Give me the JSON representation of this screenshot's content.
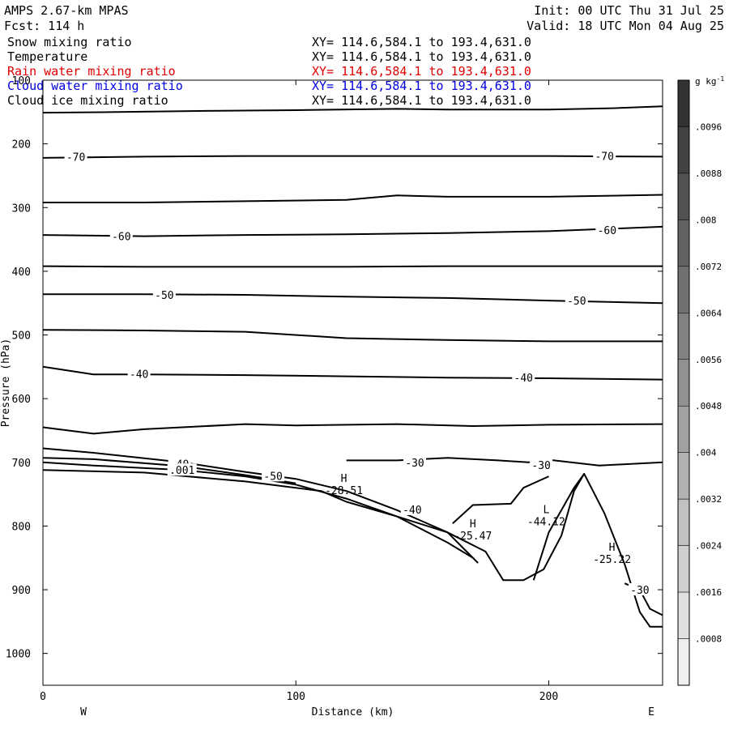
{
  "header": {
    "model": "AMPS 2.67-km MPAS",
    "forecast": "Fcst: 114 h",
    "init": "Init: 00 UTC Thu 31 Jul 25",
    "valid": "Valid: 18 UTC Mon 04 Aug 25"
  },
  "fields": [
    {
      "name": "Snow mixing ratio",
      "xy": "XY= 114.6,584.1 to 193.4,631.0",
      "color": "#000000"
    },
    {
      "name": "Temperature",
      "xy": "XY= 114.6,584.1 to 193.4,631.0",
      "color": "#000000"
    },
    {
      "name": "Rain water mixing ratio",
      "xy": "XY= 114.6,584.1 to 193.4,631.0",
      "color": "#e00000"
    },
    {
      "name": "Cloud water mixing ratio",
      "xy": "XY= 114.6,584.1 to 193.4,631.0",
      "color": "#0000e0"
    },
    {
      "name": "Cloud ice mixing ratio",
      "xy": "XY= 114.6,584.1 to 193.4,631.0",
      "color": "#000000"
    }
  ],
  "chart_data": {
    "type": "line",
    "xlabel": "Distance (km)",
    "ylabel": "Pressure (hPa)",
    "xlim": [
      0,
      245
    ],
    "ylim": [
      100,
      1050
    ],
    "x_ticks": [
      0,
      100,
      200
    ],
    "y_ticks": [
      100,
      200,
      300,
      400,
      500,
      600,
      700,
      800,
      900,
      1000
    ],
    "x_end_labels": {
      "left": "W",
      "right": "E"
    },
    "contour_labels": [
      {
        "text": "-70",
        "x": 13,
        "p": 220
      },
      {
        "text": "-70",
        "x": 222,
        "p": 219
      },
      {
        "text": "-60",
        "x": 31,
        "p": 345
      },
      {
        "text": "-60",
        "x": 223,
        "p": 335
      },
      {
        "text": "-50",
        "x": 48,
        "p": 437
      },
      {
        "text": "-50",
        "x": 211,
        "p": 446
      },
      {
        "text": "-40",
        "x": 38,
        "p": 561
      },
      {
        "text": "-40",
        "x": 190,
        "p": 567
      },
      {
        "text": "-40",
        "x": 54,
        "p": 702
      },
      {
        "text": "-50",
        "x": 91,
        "p": 721
      },
      {
        "text": ".001",
        "x": 55,
        "p": 712
      },
      {
        "text": "-30",
        "x": 147,
        "p": 700
      },
      {
        "text": "-30",
        "x": 197,
        "p": 704
      },
      {
        "text": "-40",
        "x": 146,
        "p": 774
      },
      {
        "text": "-30",
        "x": 236,
        "p": 900
      }
    ],
    "extrema": [
      {
        "kind": "H",
        "value": "-28.51",
        "x": 119,
        "p": 731
      },
      {
        "kind": "H",
        "value": "-25.47",
        "x": 170,
        "p": 802
      },
      {
        "kind": "L",
        "value": "-44.12",
        "x": 199,
        "p": 780
      },
      {
        "kind": "H",
        "value": "-25.22",
        "x": 225,
        "p": 839
      }
    ],
    "colorbar": {
      "unit": "g kg-1",
      "ticks": [
        ".0096",
        ".0088",
        ".008",
        ".0072",
        ".0064",
        ".0056",
        ".0048",
        ".004",
        ".0032",
        ".0024",
        ".0016",
        ".0008"
      ],
      "max": 0.0104
    },
    "series": [
      {
        "values": [
          [
            0,
            151
          ],
          [
            30,
            150
          ],
          [
            70,
            148
          ],
          [
            100,
            147
          ],
          [
            140,
            145
          ],
          [
            160,
            146
          ],
          [
            200,
            146
          ],
          [
            225,
            144
          ],
          [
            245,
            141
          ]
        ]
      },
      {
        "values": [
          [
            0,
            222
          ],
          [
            40,
            220
          ],
          [
            80,
            219
          ],
          [
            120,
            219
          ],
          [
            160,
            219
          ],
          [
            200,
            219
          ],
          [
            245,
            220
          ]
        ]
      },
      {
        "values": [
          [
            0,
            292
          ],
          [
            40,
            292
          ],
          [
            80,
            290
          ],
          [
            120,
            288
          ],
          [
            140,
            281
          ],
          [
            160,
            283
          ],
          [
            200,
            283
          ],
          [
            245,
            280
          ]
        ]
      },
      {
        "values": [
          [
            0,
            343
          ],
          [
            40,
            345
          ],
          [
            80,
            343
          ],
          [
            120,
            342
          ],
          [
            160,
            340
          ],
          [
            200,
            337
          ],
          [
            245,
            330
          ]
        ]
      },
      {
        "values": [
          [
            0,
            392
          ],
          [
            40,
            393
          ],
          [
            80,
            393
          ],
          [
            120,
            393
          ],
          [
            160,
            392
          ],
          [
            200,
            392
          ],
          [
            245,
            392
          ]
        ]
      },
      {
        "values": [
          [
            0,
            436
          ],
          [
            40,
            436
          ],
          [
            80,
            437
          ],
          [
            120,
            440
          ],
          [
            160,
            442
          ],
          [
            200,
            446
          ],
          [
            245,
            450
          ]
        ]
      },
      {
        "values": [
          [
            0,
            492
          ],
          [
            40,
            493
          ],
          [
            80,
            495
          ],
          [
            120,
            505
          ],
          [
            160,
            508
          ],
          [
            200,
            510
          ],
          [
            245,
            510
          ]
        ]
      },
      {
        "values": [
          [
            0,
            550
          ],
          [
            20,
            562
          ],
          [
            40,
            562
          ],
          [
            80,
            563
          ],
          [
            120,
            565
          ],
          [
            160,
            567
          ],
          [
            200,
            568
          ],
          [
            245,
            570
          ]
        ]
      },
      {
        "values": [
          [
            0,
            645
          ],
          [
            20,
            655
          ],
          [
            40,
            648
          ],
          [
            80,
            640
          ],
          [
            100,
            642
          ],
          [
            140,
            640
          ],
          [
            170,
            643
          ],
          [
            200,
            641
          ],
          [
            245,
            640
          ]
        ]
      },
      {
        "values": [
          [
            0,
            712
          ],
          [
            40,
            716
          ],
          [
            80,
            730
          ],
          [
            110,
            745
          ],
          [
            120,
            762
          ],
          [
            140,
            785
          ],
          [
            160,
            810
          ],
          [
            175,
            840
          ],
          [
            182,
            885
          ],
          [
            190,
            885
          ],
          [
            198,
            868
          ],
          [
            205,
            815
          ],
          [
            210,
            745
          ],
          [
            214,
            718
          ],
          [
            222,
            780
          ],
          [
            230,
            860
          ],
          [
            236,
            935
          ],
          [
            240,
            958
          ],
          [
            245,
            958
          ]
        ]
      },
      {
        "values": [
          [
            0,
            678
          ],
          [
            20,
            685
          ],
          [
            55,
            700
          ],
          [
            80,
            715
          ],
          [
            100,
            726
          ],
          [
            120,
            745
          ],
          [
            140,
            775
          ],
          [
            160,
            810
          ],
          [
            172,
            858
          ]
        ]
      },
      {
        "values": [
          [
            0,
            700
          ],
          [
            20,
            705
          ],
          [
            55,
            712
          ],
          [
            80,
            722
          ],
          [
            100,
            735
          ],
          [
            120,
            757
          ],
          [
            140,
            785
          ],
          [
            160,
            826
          ],
          [
            170,
            850
          ]
        ]
      },
      {
        "values": [
          [
            0,
            693
          ],
          [
            20,
            695
          ],
          [
            55,
            706
          ],
          [
            80,
            720
          ],
          [
            100,
            733
          ]
        ]
      },
      {
        "values": [
          [
            120,
            697
          ],
          [
            140,
            697
          ],
          [
            160,
            693
          ],
          [
            180,
            697
          ],
          [
            192,
            700
          ],
          [
            200,
            696
          ],
          [
            220,
            705
          ],
          [
            245,
            700
          ]
        ]
      },
      {
        "values": [
          [
            162,
            796
          ],
          [
            170,
            767
          ],
          [
            185,
            765
          ],
          [
            190,
            740
          ],
          [
            200,
            722
          ]
        ]
      },
      {
        "values": [
          [
            194,
            885
          ],
          [
            200,
            810
          ],
          [
            210,
            740
          ],
          [
            214,
            718
          ]
        ]
      },
      {
        "values": [
          [
            230,
            890
          ],
          [
            236,
            900
          ],
          [
            240,
            930
          ],
          [
            245,
            940
          ]
        ]
      }
    ]
  }
}
